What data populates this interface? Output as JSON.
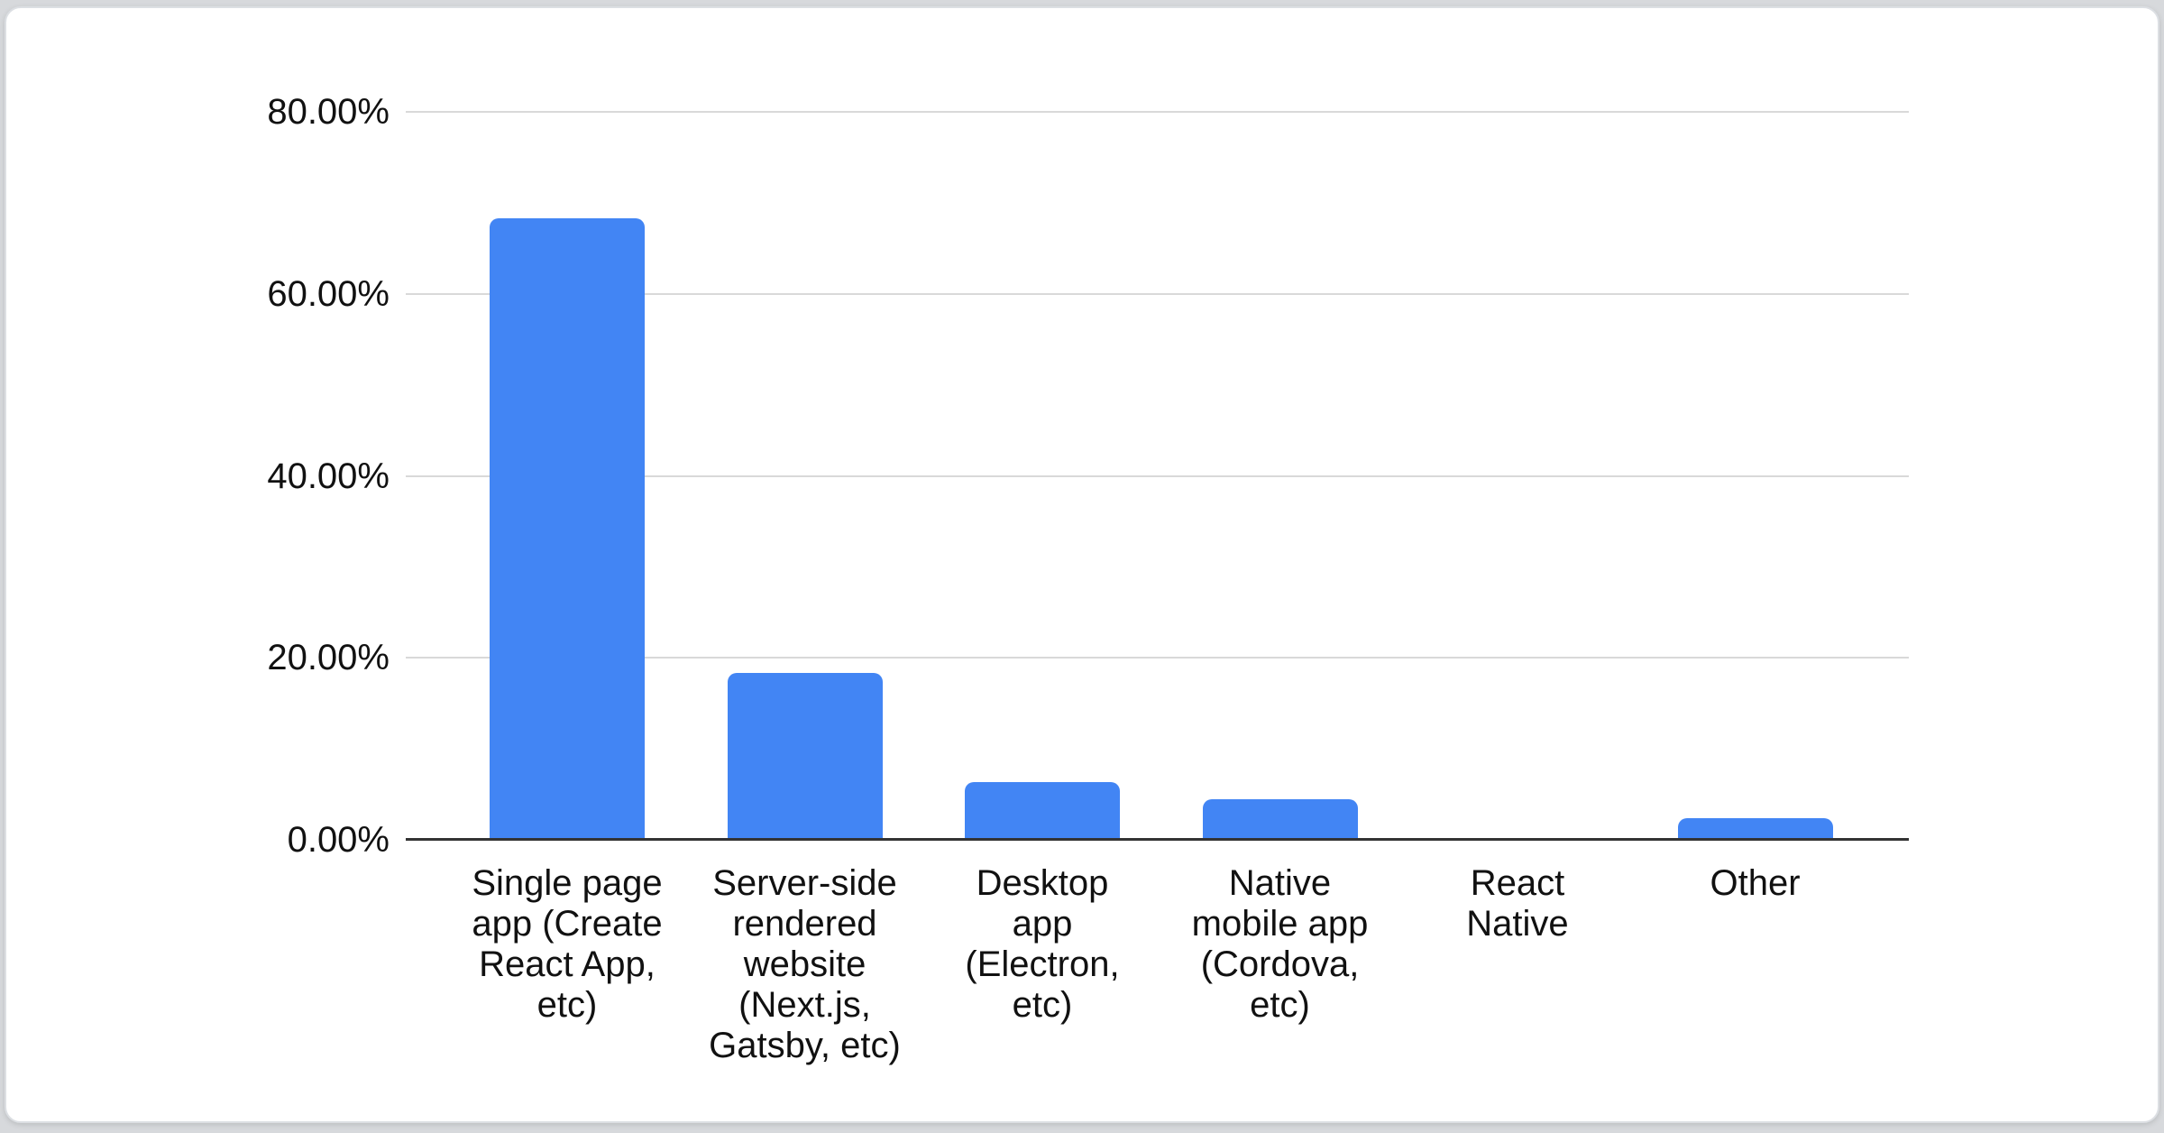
{
  "page": {
    "background_color": "#d7d9dc",
    "card_background_color": "#ffffff",
    "card_border_color": "#dcdfe3"
  },
  "chart_data": {
    "type": "bar",
    "title": "",
    "xlabel": "",
    "ylabel": "",
    "legend": "none",
    "grid": true,
    "ylim": [
      0,
      80
    ],
    "unit": "%",
    "bar_color": "#4285f4",
    "gridline_color": "#d9d9d9",
    "baseline_color": "#333333",
    "label_color": "#111111",
    "yticks": [
      {
        "label": "80.00%",
        "value": 80
      },
      {
        "label": "60.00%",
        "value": 60
      },
      {
        "label": "40.00%",
        "value": 40
      },
      {
        "label": "20.00%",
        "value": 20
      },
      {
        "label": "0.00%",
        "value": 0
      }
    ],
    "categories": [
      "Single page app (Create React App, etc)",
      "Server-side rendered website (Next.js, Gatsby, etc)",
      "Desktop app (Electron, etc)",
      "Native mobile app (Cordova, etc)",
      "React Native",
      "Other"
    ],
    "categories_wrapped": [
      [
        "Single page",
        "app (Create",
        "React App,",
        "etc)"
      ],
      [
        "Server-side",
        "rendered",
        "website",
        "(Next.js,",
        "Gatsby, etc)"
      ],
      [
        "Desktop",
        "app",
        "(Electron,",
        "etc)"
      ],
      [
        "Native",
        "mobile app",
        "(Cordova,",
        "etc)"
      ],
      [
        "React",
        "Native"
      ],
      [
        "Other"
      ]
    ],
    "values": [
      68.3,
      18.3,
      6.3,
      4.5,
      0,
      2.4
    ]
  }
}
